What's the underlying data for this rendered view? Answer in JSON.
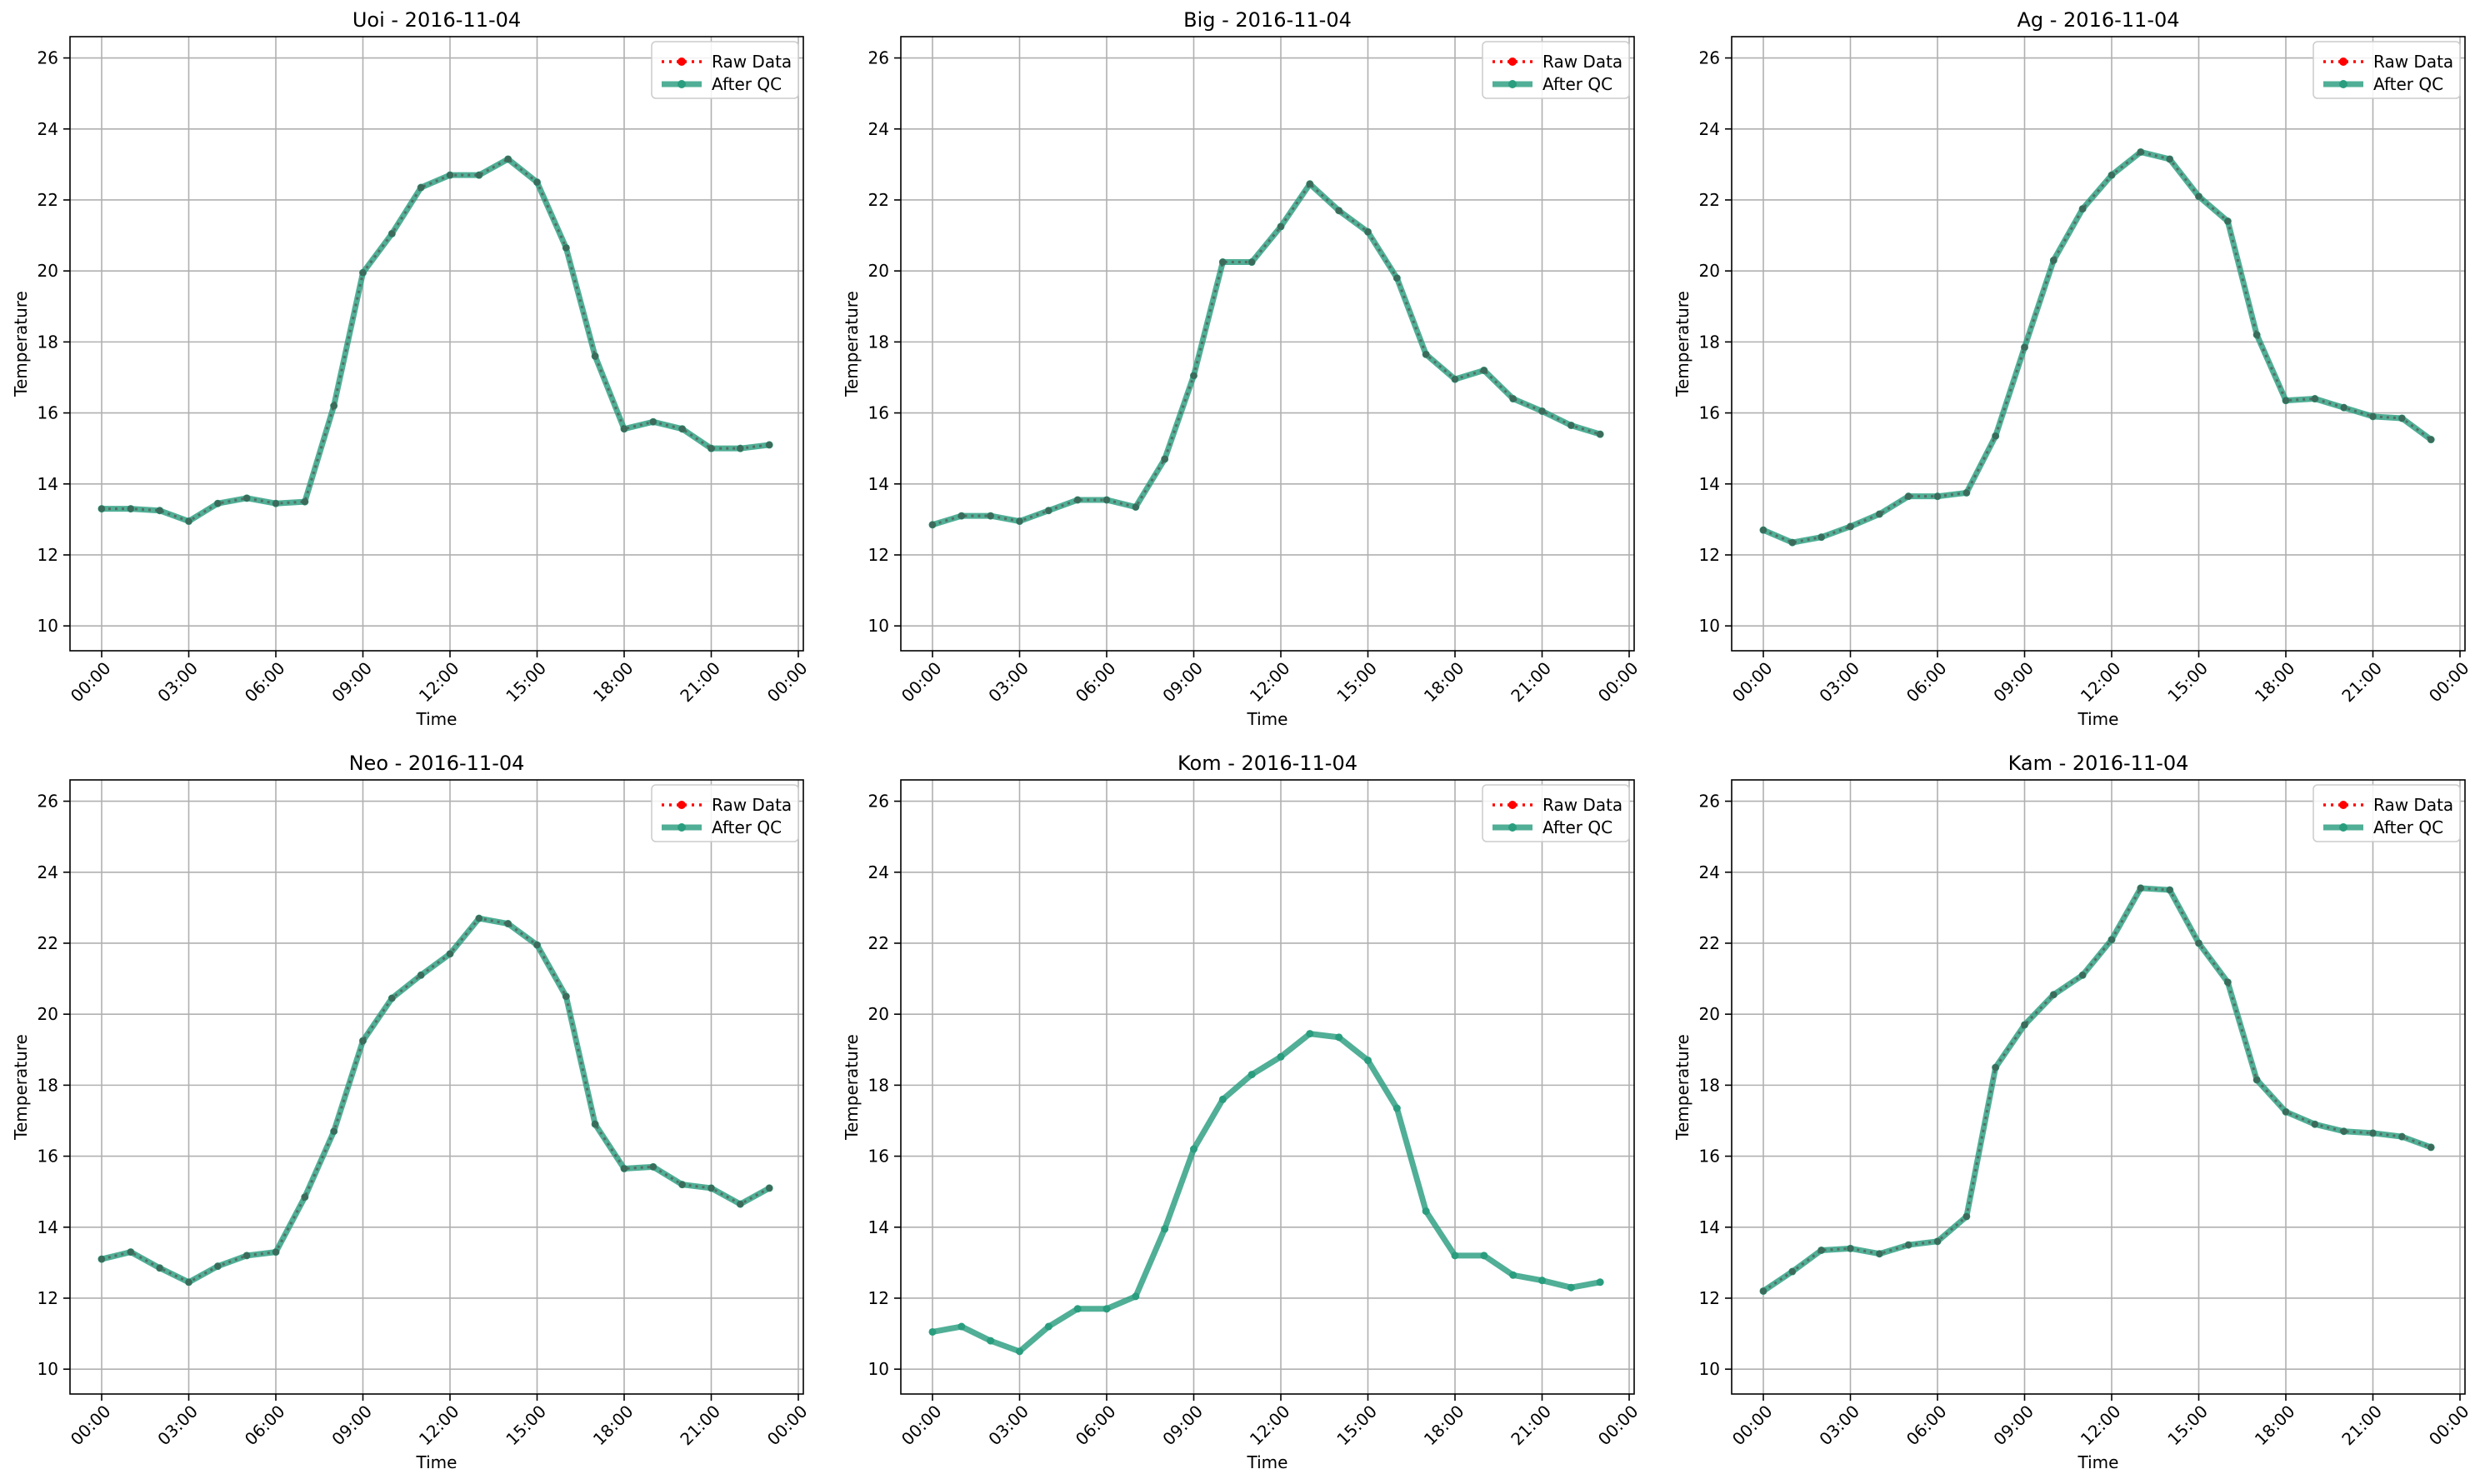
{
  "colors": {
    "raw": "#ff0000",
    "qc": "#2a9d7f",
    "grid": "#b0b0b0"
  },
  "legend": {
    "raw_label": "Raw Data",
    "qc_label": "After QC",
    "placement": "upper right"
  },
  "chart_data": [
    {
      "type": "line",
      "title": "Uoi - 2016-11-04",
      "xlabel": "Time",
      "ylabel": "Temperature",
      "ylim": [
        9.3,
        26.6
      ],
      "yticks": [
        10,
        12,
        14,
        16,
        18,
        20,
        22,
        24,
        26
      ],
      "xticks": [
        "00:00",
        "03:00",
        "06:00",
        "09:00",
        "12:00",
        "15:00",
        "18:00",
        "21:00",
        "00:00"
      ],
      "grid": true,
      "x_hours": [
        0,
        1,
        2,
        3,
        4,
        5,
        6,
        7,
        8,
        9,
        10,
        11,
        12,
        13,
        14,
        15,
        16,
        17,
        18,
        19,
        20,
        21,
        22,
        23
      ],
      "series": [
        {
          "name": "Raw Data",
          "values": [
            13.3,
            13.3,
            13.25,
            12.95,
            13.45,
            13.6,
            13.45,
            13.5,
            16.2,
            19.95,
            21.05,
            22.35,
            22.7,
            22.7,
            23.15,
            22.5,
            20.65,
            17.6,
            15.55,
            15.75,
            15.55,
            15.0,
            15.0,
            15.1
          ]
        },
        {
          "name": "After QC",
          "values": [
            13.3,
            13.3,
            13.25,
            12.95,
            13.45,
            13.6,
            13.45,
            13.5,
            16.2,
            19.95,
            21.05,
            22.35,
            22.7,
            22.7,
            23.15,
            22.5,
            20.65,
            17.6,
            15.55,
            15.75,
            15.55,
            15.0,
            15.0,
            15.1
          ]
        }
      ]
    },
    {
      "type": "line",
      "title": "Big - 2016-11-04",
      "xlabel": "Time",
      "ylabel": "Temperature",
      "ylim": [
        9.3,
        26.6
      ],
      "yticks": [
        10,
        12,
        14,
        16,
        18,
        20,
        22,
        24,
        26
      ],
      "xticks": [
        "00:00",
        "03:00",
        "06:00",
        "09:00",
        "12:00",
        "15:00",
        "18:00",
        "21:00",
        "00:00"
      ],
      "grid": true,
      "x_hours": [
        0,
        1,
        2,
        3,
        4,
        5,
        6,
        7,
        8,
        9,
        10,
        11,
        12,
        13,
        14,
        15,
        16,
        17,
        18,
        19,
        20,
        21,
        22,
        23
      ],
      "series": [
        {
          "name": "Raw Data",
          "values": [
            12.85,
            13.1,
            13.1,
            12.95,
            13.25,
            13.55,
            13.55,
            13.35,
            14.7,
            17.05,
            20.25,
            20.25,
            21.25,
            22.45,
            21.7,
            21.1,
            19.8,
            17.65,
            16.95,
            17.2,
            16.4,
            16.05,
            15.65,
            15.4
          ]
        },
        {
          "name": "After QC",
          "values": [
            12.85,
            13.1,
            13.1,
            12.95,
            13.25,
            13.55,
            13.55,
            13.35,
            14.7,
            17.05,
            20.25,
            20.25,
            21.25,
            22.45,
            21.7,
            21.1,
            19.8,
            17.65,
            16.95,
            17.2,
            16.4,
            16.05,
            15.65,
            15.4
          ]
        }
      ]
    },
    {
      "type": "line",
      "title": "Ag - 2016-11-04",
      "xlabel": "Time",
      "ylabel": "Temperature",
      "ylim": [
        9.3,
        26.6
      ],
      "yticks": [
        10,
        12,
        14,
        16,
        18,
        20,
        22,
        24,
        26
      ],
      "xticks": [
        "00:00",
        "03:00",
        "06:00",
        "09:00",
        "12:00",
        "15:00",
        "18:00",
        "21:00",
        "00:00"
      ],
      "grid": true,
      "x_hours": [
        0,
        1,
        2,
        3,
        4,
        5,
        6,
        7,
        8,
        9,
        10,
        11,
        12,
        13,
        14,
        15,
        16,
        17,
        18,
        19,
        20,
        21,
        22,
        23
      ],
      "series": [
        {
          "name": "Raw Data",
          "values": [
            12.7,
            12.35,
            12.5,
            12.8,
            13.15,
            13.65,
            13.65,
            13.75,
            15.35,
            17.85,
            20.3,
            21.75,
            22.7,
            23.35,
            23.15,
            22.1,
            21.4,
            18.2,
            16.35,
            16.4,
            16.15,
            15.9,
            15.85,
            15.25
          ]
        },
        {
          "name": "After QC",
          "values": [
            12.7,
            12.35,
            12.5,
            12.8,
            13.15,
            13.65,
            13.65,
            13.75,
            15.35,
            17.85,
            20.3,
            21.75,
            22.7,
            23.35,
            23.15,
            22.1,
            21.4,
            18.2,
            16.35,
            16.4,
            16.15,
            15.9,
            15.85,
            15.25
          ]
        }
      ]
    },
    {
      "type": "line",
      "title": "Neo - 2016-11-04",
      "xlabel": "Time",
      "ylabel": "Temperature",
      "ylim": [
        9.3,
        26.6
      ],
      "yticks": [
        10,
        12,
        14,
        16,
        18,
        20,
        22,
        24,
        26
      ],
      "xticks": [
        "00:00",
        "03:00",
        "06:00",
        "09:00",
        "12:00",
        "15:00",
        "18:00",
        "21:00",
        "00:00"
      ],
      "grid": true,
      "x_hours": [
        0,
        1,
        2,
        3,
        4,
        5,
        6,
        7,
        8,
        9,
        10,
        11,
        12,
        13,
        14,
        15,
        16,
        17,
        18,
        19,
        20,
        21,
        22,
        23
      ],
      "series": [
        {
          "name": "Raw Data",
          "values": [
            13.1,
            13.3,
            12.85,
            12.45,
            12.9,
            13.2,
            13.3,
            14.85,
            16.7,
            19.25,
            20.45,
            21.1,
            21.7,
            22.7,
            22.55,
            21.95,
            20.5,
            16.9,
            15.65,
            15.7,
            15.2,
            15.1,
            14.65,
            15.1
          ]
        },
        {
          "name": "After QC",
          "values": [
            13.1,
            13.3,
            12.85,
            12.45,
            12.9,
            13.2,
            13.3,
            14.85,
            16.7,
            19.25,
            20.45,
            21.1,
            21.7,
            22.7,
            22.55,
            21.95,
            20.5,
            16.9,
            15.65,
            15.7,
            15.2,
            15.1,
            14.65,
            15.1
          ]
        }
      ]
    },
    {
      "type": "line",
      "title": "Kom - 2016-11-04",
      "xlabel": "Time",
      "ylabel": "Temperature",
      "ylim": [
        9.3,
        26.6
      ],
      "yticks": [
        10,
        12,
        14,
        16,
        18,
        20,
        22,
        24,
        26
      ],
      "xticks": [
        "00:00",
        "03:00",
        "06:00",
        "09:00",
        "12:00",
        "15:00",
        "18:00",
        "21:00",
        "00:00"
      ],
      "grid": true,
      "x_hours": [
        0,
        1,
        2,
        3,
        4,
        5,
        6,
        7,
        8,
        9,
        10,
        11,
        12,
        13,
        14,
        15,
        16,
        17,
        18,
        19,
        20,
        21,
        22,
        23
      ],
      "series": [
        {
          "name": "After QC",
          "values": [
            11.05,
            11.2,
            10.8,
            10.5,
            11.2,
            11.7,
            11.7,
            12.05,
            13.95,
            16.2,
            17.6,
            18.3,
            18.8,
            19.45,
            19.35,
            18.7,
            17.35,
            14.45,
            13.2,
            13.2,
            12.65,
            12.5,
            12.3,
            12.45
          ]
        }
      ]
    },
    {
      "type": "line",
      "title": "Kam - 2016-11-04",
      "xlabel": "Time",
      "ylabel": "Temperature",
      "ylim": [
        9.3,
        26.6
      ],
      "yticks": [
        10,
        12,
        14,
        16,
        18,
        20,
        22,
        24,
        26
      ],
      "xticks": [
        "00:00",
        "03:00",
        "06:00",
        "09:00",
        "12:00",
        "15:00",
        "18:00",
        "21:00",
        "00:00"
      ],
      "grid": true,
      "x_hours": [
        0,
        1,
        2,
        3,
        4,
        5,
        6,
        7,
        8,
        9,
        10,
        11,
        12,
        13,
        14,
        15,
        16,
        17,
        18,
        19,
        20,
        21,
        22,
        23
      ],
      "series": [
        {
          "name": "Raw Data",
          "values": [
            12.2,
            12.75,
            13.35,
            13.4,
            13.25,
            13.5,
            13.6,
            14.3,
            18.5,
            19.7,
            20.55,
            21.1,
            22.1,
            23.55,
            23.5,
            22.0,
            20.9,
            18.15,
            17.25,
            16.9,
            16.7,
            16.65,
            16.55,
            16.25
          ]
        },
        {
          "name": "After QC",
          "values": [
            12.2,
            12.75,
            13.35,
            13.4,
            13.25,
            13.5,
            13.6,
            14.3,
            18.5,
            19.7,
            20.55,
            21.1,
            22.1,
            23.55,
            23.5,
            22.0,
            20.9,
            18.15,
            17.25,
            16.9,
            16.7,
            16.65,
            16.55,
            16.25
          ]
        }
      ]
    }
  ]
}
